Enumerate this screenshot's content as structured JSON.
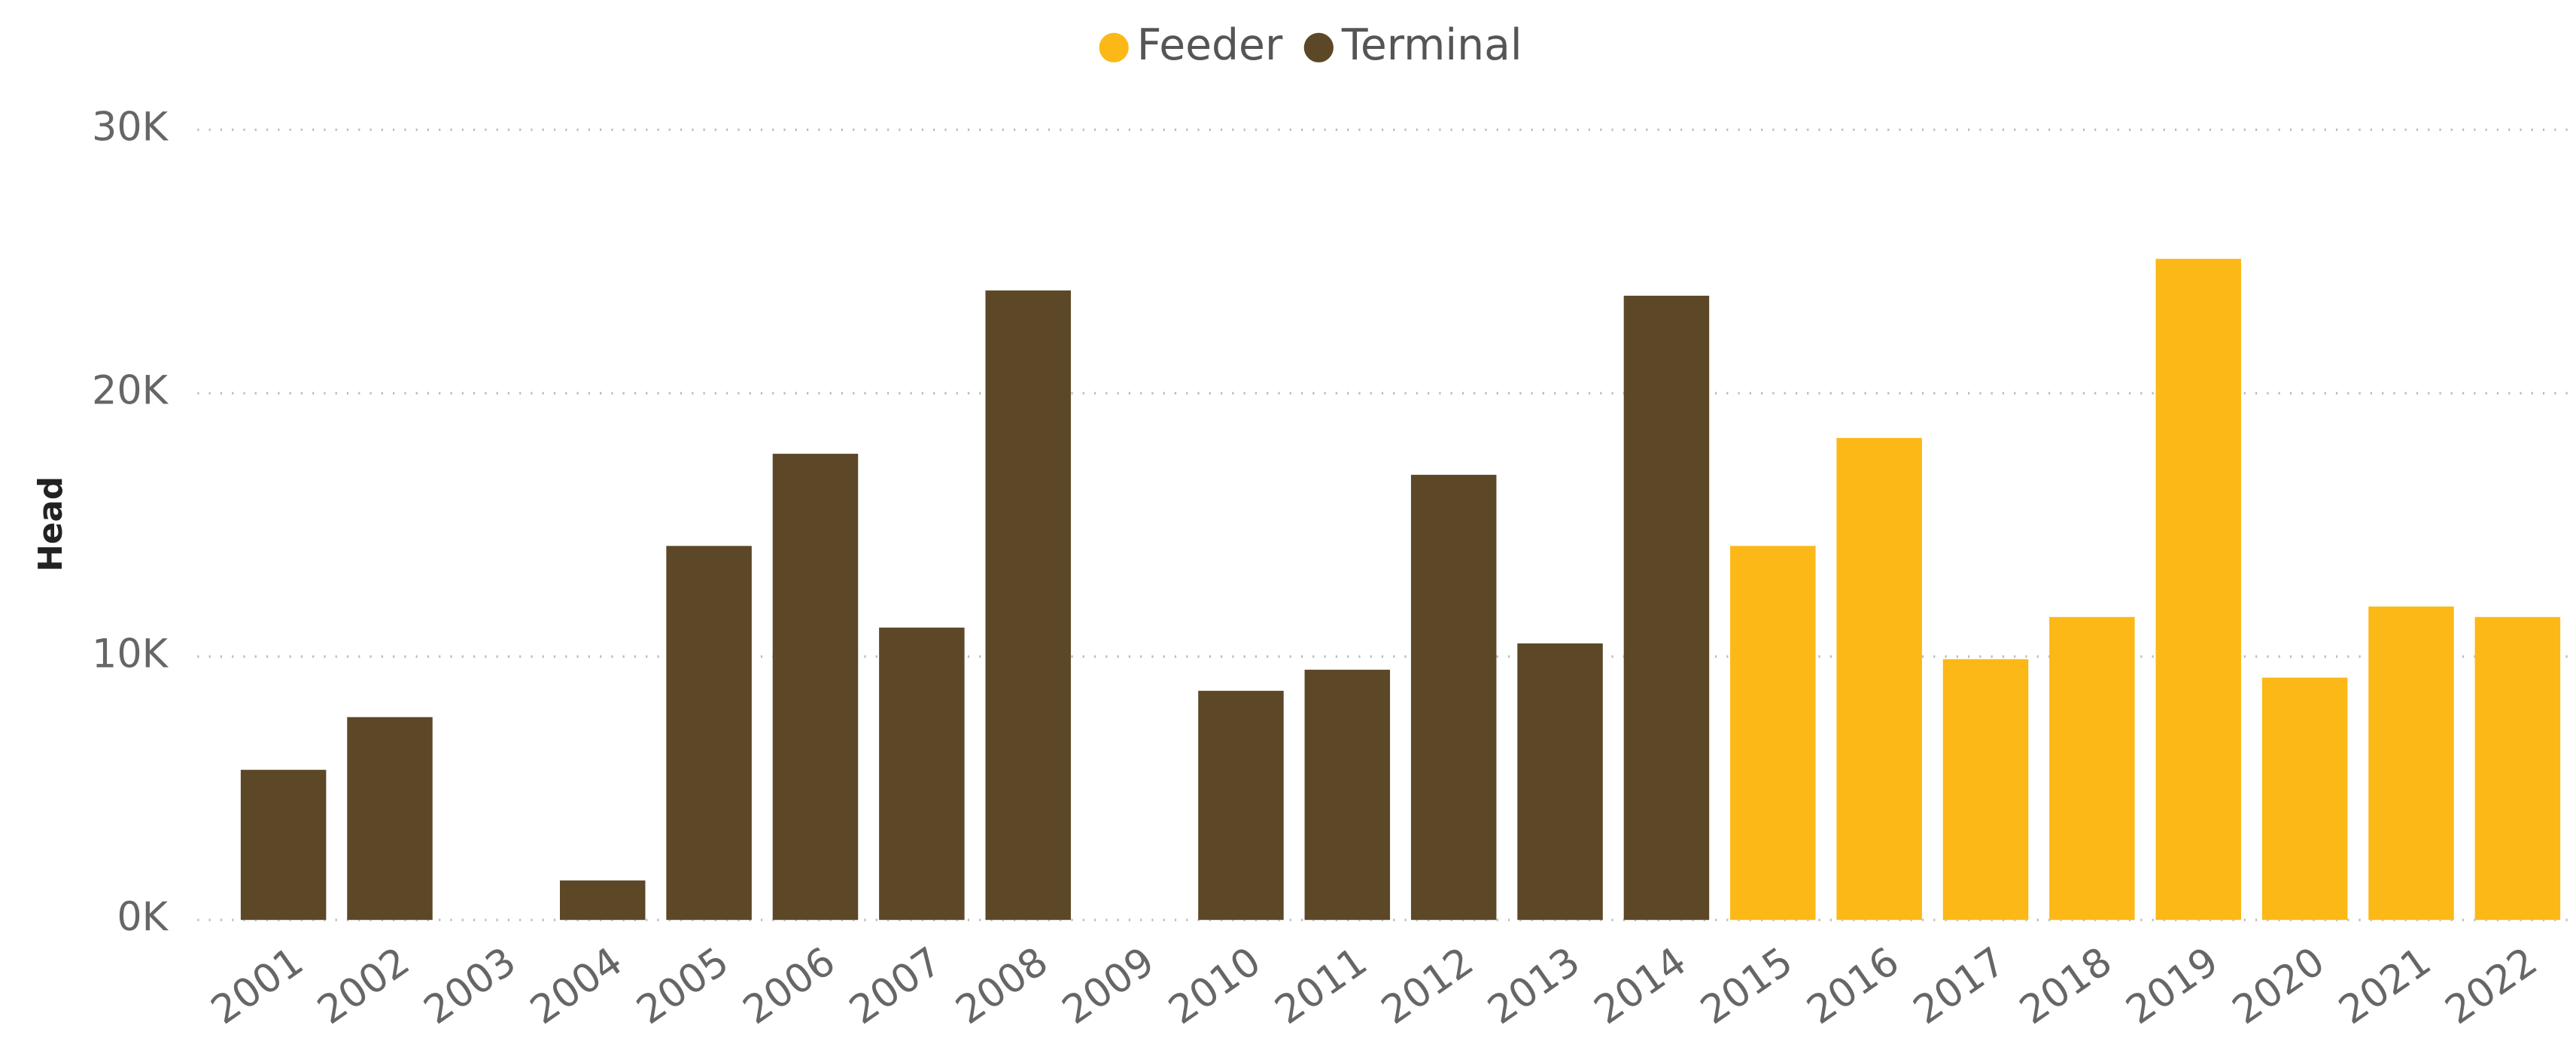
{
  "chart_data": {
    "type": "stacked_bar",
    "y_label": "Head",
    "categories": [
      "2001",
      "2002",
      "2003",
      "2004",
      "2005",
      "2006",
      "2007",
      "2008",
      "2009",
      "2010",
      "2011",
      "2012",
      "2013",
      "2014",
      "2015",
      "2016",
      "2017",
      "2018",
      "2019",
      "2020",
      "2021",
      "2022"
    ],
    "series": [
      {
        "name": "Feeder",
        "color": "#fbb817",
        "values": [
          null,
          null,
          null,
          null,
          null,
          null,
          null,
          null,
          null,
          null,
          null,
          null,
          null,
          null,
          14200,
          18300,
          9900,
          11500,
          25100,
          9200,
          11900,
          11500
        ]
      },
      {
        "name": "Terminal",
        "color": "#5c4827",
        "values": [
          5700,
          7700,
          null,
          1500,
          14200,
          17700,
          11100,
          23900,
          null,
          8700,
          9500,
          16900,
          10500,
          23700,
          null,
          null,
          null,
          null,
          null,
          null,
          null,
          null
        ]
      }
    ],
    "ylim": [
      0,
      30000
    ],
    "yticks": [
      {
        "value": 0,
        "label": "0K"
      },
      {
        "value": 10000,
        "label": "10K"
      },
      {
        "value": 20000,
        "label": "20K"
      },
      {
        "value": 30000,
        "label": "30K"
      }
    ],
    "grid": true,
    "legend": "top"
  }
}
